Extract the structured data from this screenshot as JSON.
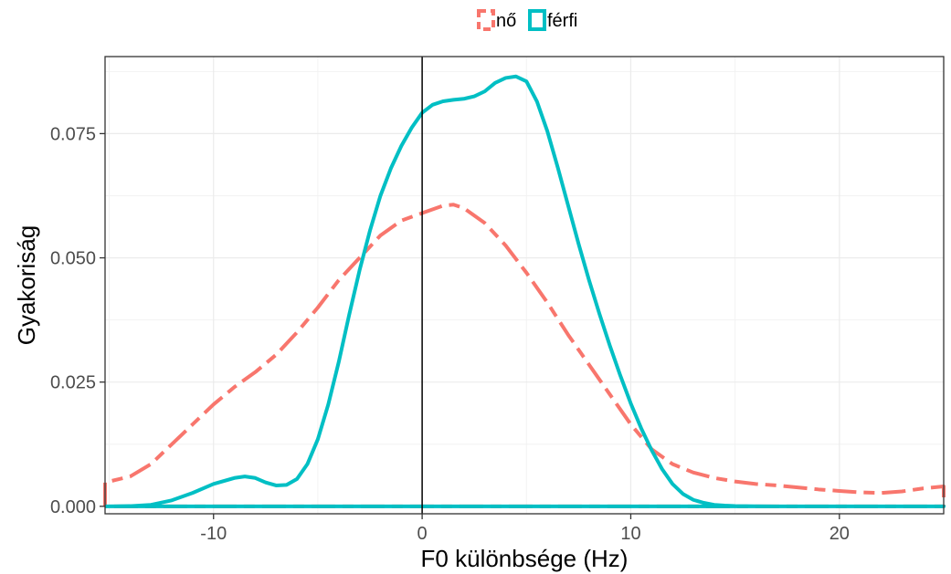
{
  "chart_data": {
    "type": "line",
    "subtype": "density",
    "xlabel": "F0 különbsége (Hz)",
    "ylabel": "Gyakoriság",
    "xlim": [
      -15.2,
      25
    ],
    "ylim": [
      -0.0015,
      0.0905
    ],
    "x_ticks": [
      -10,
      0,
      10,
      20
    ],
    "x_tick_labels": [
      "-10",
      "0",
      "10",
      "20"
    ],
    "y_ticks": [
      0,
      0.025,
      0.05,
      0.075
    ],
    "y_tick_labels": [
      "0.000",
      "0.025",
      "0.050",
      "0.075"
    ],
    "grid": true,
    "vline_x": 0,
    "legend_position": "top",
    "series": [
      {
        "name": "nő",
        "color": "#F8766D",
        "dash": "dashed",
        "x": [
          -15.2,
          -15.2,
          -14,
          -13,
          -12,
          -11,
          -10,
          -9,
          -8,
          -7,
          -6,
          -5,
          -4,
          -3,
          -2,
          -1,
          0,
          1,
          1.5,
          2,
          3,
          4,
          5,
          6,
          7,
          8,
          9,
          10,
          11,
          12,
          13,
          14,
          15,
          16,
          17,
          18,
          19,
          20,
          21,
          22,
          23,
          24,
          25,
          25
        ],
        "y": [
          0,
          0.0048,
          0.006,
          0.0085,
          0.0125,
          0.0165,
          0.0205,
          0.024,
          0.027,
          0.0305,
          0.035,
          0.04,
          0.0455,
          0.05,
          0.0545,
          0.0575,
          0.059,
          0.0605,
          0.0607,
          0.06,
          0.057,
          0.0525,
          0.047,
          0.041,
          0.0345,
          0.0285,
          0.0225,
          0.0165,
          0.0115,
          0.0085,
          0.0068,
          0.0057,
          0.005,
          0.0045,
          0.0042,
          0.0038,
          0.0034,
          0.0031,
          0.0028,
          0.0027,
          0.003,
          0.0036,
          0.004,
          0
        ]
      },
      {
        "name": "férfi",
        "color": "#00BFC4",
        "dash": "solid",
        "x": [
          -15.2,
          -14,
          -13,
          -12,
          -11,
          -10,
          -9,
          -8.5,
          -8,
          -7.5,
          -7,
          -6.5,
          -6,
          -5.5,
          -5,
          -4.5,
          -4,
          -3.5,
          -3,
          -2.5,
          -2,
          -1.5,
          -1,
          -0.5,
          0,
          0.5,
          1,
          1.5,
          2,
          2.5,
          3,
          3.5,
          4,
          4.5,
          5,
          5.5,
          6,
          6.5,
          7,
          7.5,
          8,
          8.5,
          9,
          9.5,
          10,
          10.5,
          11,
          11.5,
          12,
          12.5,
          13,
          13.5,
          14,
          14.5,
          15,
          16,
          17,
          18,
          20,
          22,
          25
        ],
        "y": [
          0,
          5e-05,
          0.0003,
          0.0012,
          0.0027,
          0.0045,
          0.0057,
          0.006,
          0.0057,
          0.0048,
          0.0042,
          0.0043,
          0.0055,
          0.0085,
          0.0135,
          0.0205,
          0.029,
          0.0385,
          0.0475,
          0.0555,
          0.0625,
          0.068,
          0.0725,
          0.0762,
          0.0792,
          0.0808,
          0.0815,
          0.0818,
          0.082,
          0.0825,
          0.0835,
          0.0852,
          0.0862,
          0.0865,
          0.0855,
          0.0815,
          0.0755,
          0.0682,
          0.0605,
          0.0528,
          0.0455,
          0.0387,
          0.0323,
          0.0263,
          0.0207,
          0.0157,
          0.0113,
          0.0075,
          0.0045,
          0.0025,
          0.0013,
          0.0007,
          0.0003,
          0.00015,
          5e-05,
          1e-05,
          0,
          0,
          0,
          0,
          0
        ]
      }
    ]
  }
}
